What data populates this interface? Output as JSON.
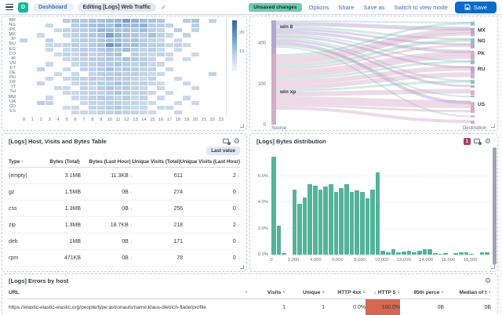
{
  "topbar": {
    "logo_letter": "D",
    "breadcrumb_dashboard": "Dashboard",
    "breadcrumb_current": "Editing [Logs] Web Traffic",
    "unsaved_badge": "Unsaved changes",
    "options": "Options",
    "share": "Share",
    "save_as": "Save as",
    "switch_view": "Switch to view mode",
    "save": "Save"
  },
  "table_panel": {
    "title": "[Logs] Host, Visits and Bytes Table",
    "last_value": "Last value",
    "columns": [
      {
        "label": "Type",
        "sort": "asc"
      },
      {
        "label": "Bytes (Total)"
      },
      {
        "label": "Bytes (Last Hour)"
      },
      {
        "label": "Unique Visits (Total)"
      },
      {
        "label": "Unique Visits (Last Hour)"
      }
    ],
    "rows": [
      {
        "type": "(empty)",
        "muted": true,
        "bytes_total": "3.1MB",
        "bytes_last_hour": "11.3KB",
        "blh_trend": "down",
        "uv_total": "611",
        "uv_last_hour": "2",
        "uvlh_trend": "down"
      },
      {
        "type": "gz",
        "muted": false,
        "bytes_total": "1.5MB",
        "bytes_last_hour": "0B",
        "blh_trend": "down",
        "uv_total": "274",
        "uv_last_hour": "0",
        "uvlh_trend": "down"
      },
      {
        "type": "css",
        "muted": false,
        "bytes_total": "1.3MB",
        "bytes_last_hour": "0B",
        "blh_trend": "down",
        "uv_total": "256",
        "uv_last_hour": "0",
        "uvlh_trend": "down"
      },
      {
        "type": "zip",
        "muted": false,
        "bytes_total": "1.3MB",
        "bytes_last_hour": "18.7KB",
        "blh_trend": "up",
        "uv_total": "218",
        "uv_last_hour": "2",
        "uvlh_trend": "up"
      },
      {
        "type": "deb",
        "muted": false,
        "bytes_total": "1MB",
        "bytes_last_hour": "0B",
        "blh_trend": "down",
        "uv_total": "171",
        "uv_last_hour": "0",
        "uvlh_trend": "down"
      },
      {
        "type": "rpm",
        "muted": false,
        "bytes_total": "471KB",
        "bytes_last_hour": "0B",
        "blh_trend": "down",
        "uv_total": "78",
        "uv_last_hour": "0",
        "uvlh_trend": "down"
      }
    ]
  },
  "histogram_panel": {
    "title": "[Logs] Bytes distribution",
    "badge": "1"
  },
  "errors_panel": {
    "title": "[Logs] Errors by host",
    "columns": [
      {
        "label": "URL"
      },
      {
        "label": "Visits"
      },
      {
        "label": "Unique"
      },
      {
        "label": "HTTP 4xx"
      },
      {
        "label": "HTTP 5",
        "sorted": "desc"
      },
      {
        "label": "95th perce"
      },
      {
        "label": "Median of t"
      }
    ],
    "row": {
      "url": "https://elastic-elastic-elastic.org/people/type:astronauts/name:klaus-dietrich-flade/profile",
      "visits": "1",
      "unique": "1",
      "http_4xx": "0.0%",
      "http_5xx": "100.0%",
      "p95": "0B",
      "median": "0B"
    }
  },
  "chart_data": [
    {
      "type": "heatmap",
      "title": "",
      "xlabel": "",
      "ylabel": "",
      "x": [
        "0",
        "1",
        "2",
        "3",
        "4",
        "5",
        "6",
        "7",
        "8",
        "9",
        "10",
        "11",
        "12",
        "13",
        "14",
        "15",
        "16",
        "17",
        "18",
        "19",
        "20",
        "21",
        "22",
        "23"
      ],
      "y": [
        "BR",
        "NG",
        "PK",
        "MX",
        "JP",
        "RU",
        "EG",
        "CO",
        "IR",
        "VN",
        "ET",
        "DE",
        "PH",
        "FR",
        "IT",
        "TH",
        "MM",
        "UA",
        "CD",
        "ES"
      ],
      "legend_ticks": [
        "20",
        "10"
      ],
      "matrix": [
        [
          0,
          0,
          0,
          0,
          0,
          6,
          7,
          7,
          8,
          8,
          9,
          10,
          14,
          11,
          9,
          8,
          7,
          0,
          0,
          6,
          8,
          0,
          5,
          0
        ],
        [
          0,
          0,
          0,
          4,
          0,
          0,
          6,
          7,
          8,
          9,
          8,
          12,
          9,
          9,
          11,
          6,
          6,
          5,
          0,
          0,
          6,
          0,
          0,
          0
        ],
        [
          0,
          0,
          0,
          0,
          4,
          5,
          6,
          6,
          7,
          10,
          9,
          8,
          8,
          7,
          9,
          6,
          5,
          0,
          6,
          0,
          5,
          0,
          0,
          0
        ],
        [
          0,
          0,
          4,
          0,
          0,
          4,
          5,
          6,
          7,
          8,
          14,
          10,
          8,
          7,
          6,
          8,
          5,
          4,
          0,
          5,
          0,
          0,
          0,
          0
        ],
        [
          5,
          0,
          0,
          5,
          0,
          0,
          5,
          6,
          6,
          7,
          8,
          9,
          7,
          8,
          6,
          5,
          4,
          0,
          4,
          0,
          0,
          0,
          0,
          0
        ],
        [
          0,
          0,
          0,
          4,
          4,
          5,
          6,
          5,
          7,
          8,
          16,
          12,
          8,
          9,
          7,
          6,
          6,
          4,
          5,
          4,
          0,
          0,
          0,
          0
        ],
        [
          0,
          0,
          0,
          4,
          0,
          4,
          5,
          6,
          6,
          7,
          8,
          7,
          9,
          6,
          5,
          6,
          4,
          0,
          4,
          0,
          0,
          0,
          0,
          0
        ],
        [
          0,
          0,
          0,
          0,
          4,
          5,
          4,
          6,
          5,
          6,
          7,
          8,
          0,
          6,
          5,
          4,
          5,
          4,
          0,
          0,
          4,
          0,
          0,
          0
        ],
        [
          0,
          0,
          0,
          0,
          0,
          4,
          5,
          5,
          6,
          6,
          7,
          6,
          8,
          7,
          6,
          5,
          0,
          4,
          0,
          4,
          0,
          0,
          0,
          0
        ],
        [
          0,
          0,
          0,
          4,
          0,
          0,
          4,
          5,
          5,
          6,
          6,
          7,
          6,
          5,
          6,
          4,
          4,
          0,
          0,
          0,
          0,
          0,
          0,
          0
        ],
        [
          0,
          0,
          5,
          0,
          0,
          4,
          0,
          5,
          5,
          6,
          8,
          6,
          7,
          6,
          5,
          5,
          0,
          4,
          0,
          0,
          0,
          0,
          0,
          0
        ],
        [
          0,
          0,
          0,
          0,
          4,
          0,
          4,
          0,
          5,
          6,
          6,
          7,
          6,
          6,
          5,
          4,
          4,
          0,
          0,
          0,
          0,
          0,
          5,
          0
        ],
        [
          0,
          0,
          0,
          4,
          0,
          4,
          5,
          5,
          6,
          5,
          7,
          6,
          6,
          5,
          4,
          5,
          0,
          0,
          4,
          0,
          0,
          0,
          0,
          0
        ],
        [
          0,
          0,
          5,
          0,
          0,
          0,
          4,
          5,
          5,
          6,
          6,
          8,
          6,
          5,
          5,
          4,
          4,
          0,
          0,
          4,
          0,
          0,
          0,
          0
        ],
        [
          0,
          0,
          0,
          0,
          4,
          4,
          0,
          5,
          4,
          6,
          7,
          6,
          6,
          5,
          4,
          0,
          4,
          0,
          0,
          0,
          4,
          0,
          0,
          0
        ],
        [
          0,
          0,
          0,
          0,
          0,
          4,
          4,
          5,
          5,
          5,
          6,
          8,
          6,
          5,
          5,
          4,
          0,
          4,
          0,
          0,
          0,
          0,
          0,
          0
        ],
        [
          0,
          0,
          0,
          4,
          0,
          0,
          4,
          4,
          5,
          6,
          6,
          5,
          6,
          4,
          5,
          0,
          4,
          0,
          0,
          4,
          0,
          0,
          0,
          0
        ],
        [
          0,
          0,
          6,
          5,
          0,
          0,
          0,
          4,
          5,
          5,
          6,
          6,
          5,
          5,
          4,
          4,
          0,
          0,
          4,
          0,
          4,
          0,
          0,
          0
        ],
        [
          0,
          0,
          0,
          0,
          0,
          4,
          4,
          0,
          5,
          5,
          6,
          7,
          5,
          4,
          4,
          0,
          4,
          4,
          0,
          0,
          0,
          0,
          0,
          0
        ],
        [
          0,
          0,
          0,
          0,
          0,
          0,
          4,
          4,
          4,
          5,
          5,
          6,
          5,
          5,
          4,
          4,
          0,
          0,
          4,
          0,
          0,
          0,
          0,
          0
        ]
      ]
    },
    {
      "type": "sankey",
      "title": "",
      "source_label": "Source",
      "destination_label": "Destination",
      "axis_ticks": [
        {
          "label": "0",
          "v": 0
        },
        {
          "label": "200",
          "v": 200
        },
        {
          "label": "400",
          "v": 400
        }
      ],
      "sources": [
        {
          "name": "win 8",
          "value": 165,
          "color": "purple"
        },
        {
          "name": "win xp",
          "value": 340,
          "color": "pink"
        }
      ],
      "dests": [
        {
          "id": "u1",
          "label": "",
          "y": 0.02,
          "color": "teal"
        },
        {
          "id": "MX",
          "label": "MX",
          "y": 0.08,
          "color": "purple"
        },
        {
          "id": "u2",
          "label": "",
          "y": 0.13,
          "color": "pink"
        },
        {
          "id": "NG",
          "label": "NG",
          "y": 0.18,
          "color": "teal"
        },
        {
          "id": "u3",
          "label": "",
          "y": 0.23,
          "color": "purple"
        },
        {
          "id": "PK",
          "label": "PK",
          "y": 0.3,
          "color": "pink"
        },
        {
          "id": "u4",
          "label": "",
          "y": 0.35,
          "color": "pink"
        },
        {
          "id": "u5",
          "label": "",
          "y": 0.39,
          "color": "teal"
        },
        {
          "id": "RU",
          "label": "RU",
          "y": 0.45,
          "color": "purple"
        },
        {
          "id": "u6",
          "label": "",
          "y": 0.52,
          "color": "pink"
        },
        {
          "id": "u7",
          "label": "",
          "y": 0.58,
          "color": "teal"
        },
        {
          "id": "u8",
          "label": "",
          "y": 0.63,
          "color": "purple"
        },
        {
          "id": "u9",
          "label": "",
          "y": 0.68,
          "color": "pink"
        },
        {
          "id": "u10",
          "label": "",
          "y": 0.73,
          "color": "teal"
        },
        {
          "id": "US",
          "label": "US",
          "y": 0.79,
          "color": "pink"
        },
        {
          "id": "u11",
          "label": "",
          "y": 0.87,
          "color": "pink"
        },
        {
          "id": "u12",
          "label": "",
          "y": 0.92,
          "color": "teal"
        },
        {
          "id": "u13",
          "label": "",
          "y": 0.97,
          "color": "pink"
        }
      ],
      "flows": [
        {
          "source": "win 8",
          "dest": "u1",
          "w": 2
        },
        {
          "source": "win 8",
          "dest": "MX",
          "w": 5
        },
        {
          "source": "win 8",
          "dest": "NG",
          "w": 3
        },
        {
          "source": "win 8",
          "dest": "u3",
          "w": 3
        },
        {
          "source": "win 8",
          "dest": "PK",
          "w": 4
        },
        {
          "source": "win 8",
          "dest": "u5",
          "w": 2
        },
        {
          "source": "win 8",
          "dest": "RU",
          "w": 3
        },
        {
          "source": "win 8",
          "dest": "u7",
          "w": 2
        },
        {
          "source": "win 8",
          "dest": "u8",
          "w": 3
        },
        {
          "source": "win 8",
          "dest": "US",
          "w": 4
        },
        {
          "source": "win 8",
          "dest": "u10",
          "w": 2
        },
        {
          "source": "win 8",
          "dest": "u12",
          "w": 2
        },
        {
          "source": "win xp",
          "dest": "u1",
          "w": 3
        },
        {
          "source": "win xp",
          "dest": "MX",
          "w": 6
        },
        {
          "source": "win xp",
          "dest": "u2",
          "w": 4
        },
        {
          "source": "win xp",
          "dest": "NG",
          "w": 4
        },
        {
          "source": "win xp",
          "dest": "u3",
          "w": 3
        },
        {
          "source": "win xp",
          "dest": "PK",
          "w": 5
        },
        {
          "source": "win xp",
          "dest": "u4",
          "w": 5
        },
        {
          "source": "win xp",
          "dest": "u5",
          "w": 3
        },
        {
          "source": "win xp",
          "dest": "RU",
          "w": 6
        },
        {
          "source": "win xp",
          "dest": "u6",
          "w": 6
        },
        {
          "source": "win xp",
          "dest": "u7",
          "w": 3
        },
        {
          "source": "win xp",
          "dest": "u9",
          "w": 6
        },
        {
          "source": "win xp",
          "dest": "US",
          "w": 10
        },
        {
          "source": "win xp",
          "dest": "u11",
          "w": 3
        },
        {
          "source": "win xp",
          "dest": "u13",
          "w": 4
        }
      ]
    },
    {
      "type": "bar",
      "title": "[Logs] Bytes distribution",
      "xlabel": "",
      "ylabel": "",
      "bin_width": 470,
      "ylim": [
        0,
        7.8
      ],
      "y_ticks": [
        {
          "label": "0.0%",
          "v": 0
        },
        {
          "label": "2.0%",
          "v": 2
        },
        {
          "label": "4.0%",
          "v": 4
        },
        {
          "label": "6.0%",
          "v": 6
        }
      ],
      "x_ticks": [
        {
          "label": "0",
          "v": 0
        },
        {
          "label": "2,000",
          "v": 2000
        },
        {
          "label": "4,000",
          "v": 4000
        },
        {
          "label": "6,000",
          "v": 6000
        },
        {
          "label": "8,000",
          "v": 8000
        },
        {
          "label": "10,000",
          "v": 10000
        },
        {
          "label": "12,000",
          "v": 12000
        },
        {
          "label": "14,000",
          "v": 14000
        },
        {
          "label": "16,000",
          "v": 16000
        },
        {
          "label": "18,000",
          "v": 18000
        }
      ],
      "values": [
        7.5,
        2.2,
        0.1,
        0,
        5,
        3.9,
        4.4,
        5.4,
        5.3,
        5,
        5.2,
        5.4,
        4.8,
        5.1,
        5.4,
        4.8,
        4.9,
        4.8,
        4.3,
        5,
        6.3,
        0.3,
        0.2,
        0.4,
        0.2,
        0.25,
        0.3,
        0.2,
        0.3,
        0.4,
        0.4,
        0.1,
        0.05,
        0.15,
        0,
        0.1,
        0.2,
        0.2,
        0.05,
        0,
        0.2,
        0.2
      ]
    }
  ]
}
